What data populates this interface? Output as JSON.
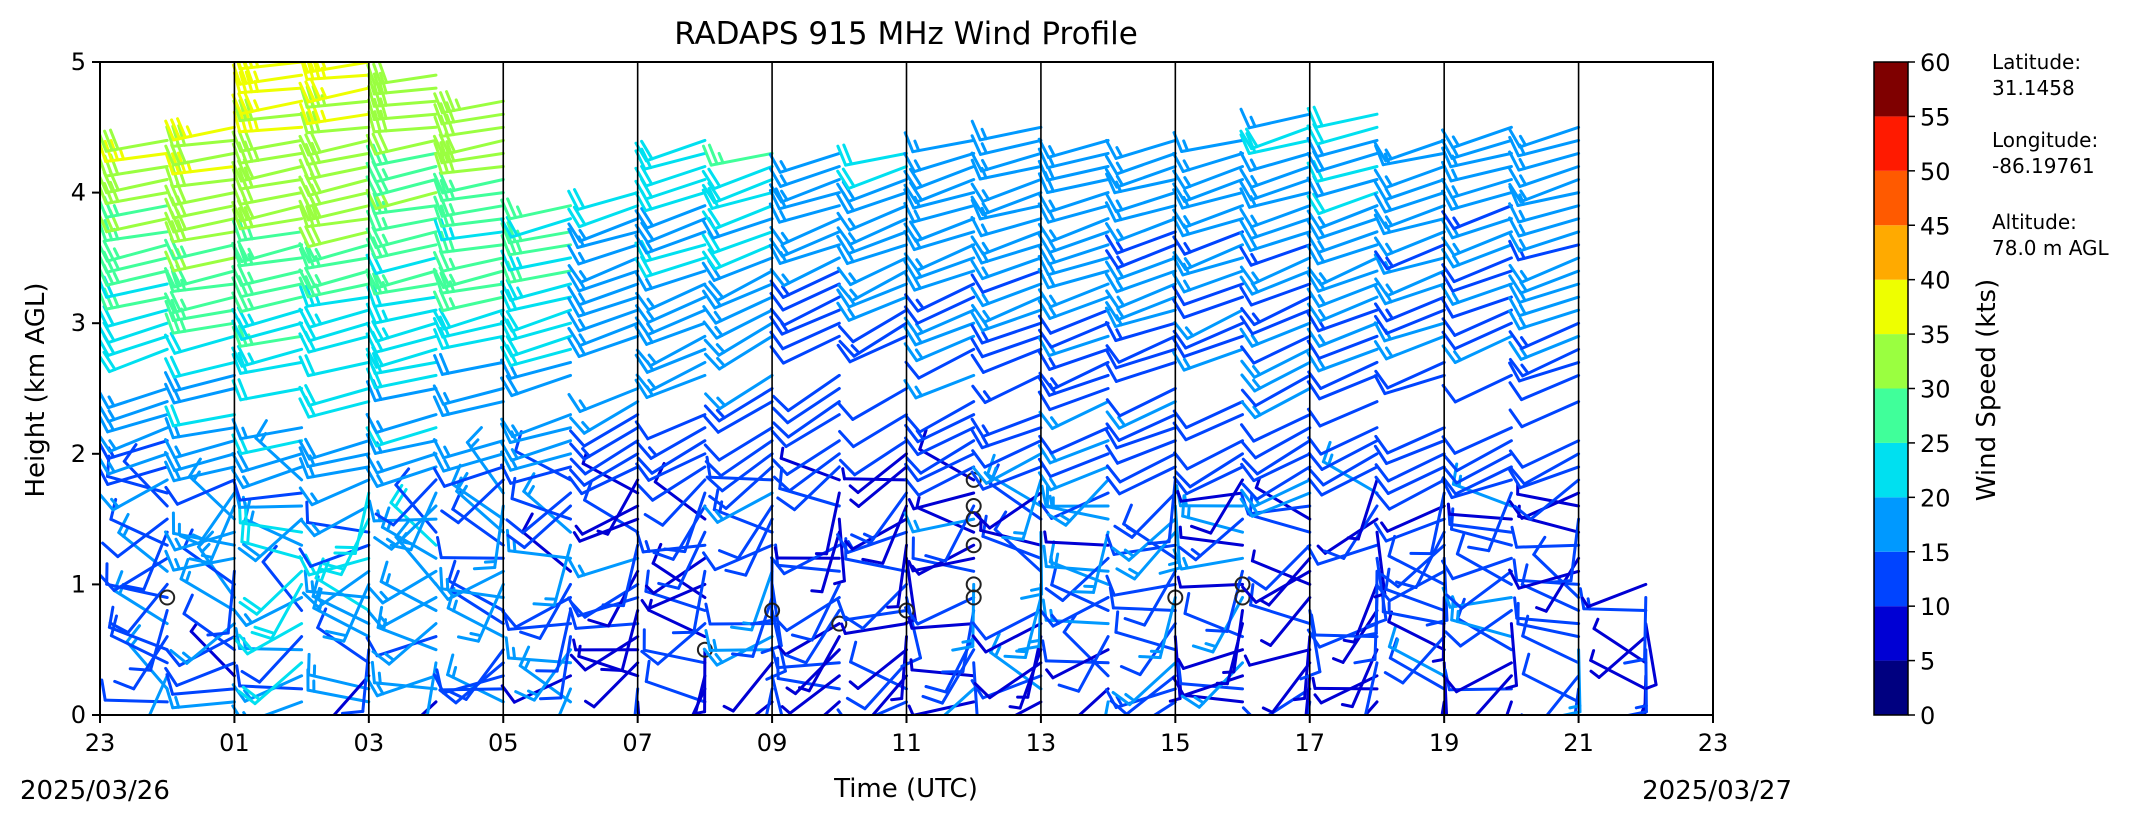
{
  "chart_data": {
    "type": "wind_barb_profile",
    "title": "RADAPS 915 MHz Wind Profile",
    "xlabel": "Time (UTC)",
    "ylabel": "Height (km AGL)",
    "x_ticks": [
      "23",
      "01",
      "03",
      "05",
      "07",
      "09",
      "11",
      "13",
      "15",
      "17",
      "19",
      "21",
      "23"
    ],
    "date_start": "2025/03/26",
    "date_end": "2025/03/27",
    "x_range_hours": [
      0,
      24
    ],
    "ylim": [
      0,
      5
    ],
    "y_ticks": [
      "0",
      "1",
      "2",
      "3",
      "4",
      "5"
    ],
    "barb_step_hours": 1,
    "gate_spacing_km": 0.1,
    "profiles": [
      {
        "hour": 1,
        "time": "00",
        "top_km": 4.4,
        "upper_speed_kts": 34,
        "lower_speed_kts": 14,
        "upper_dir_deg": 260,
        "lower_dir_deg": 250,
        "circles_km": [
          0.9
        ]
      },
      {
        "hour": 2,
        "time": "01",
        "top_km": 4.5,
        "upper_speed_kts": 37,
        "lower_speed_kts": 15,
        "upper_dir_deg": 262,
        "lower_dir_deg": 255,
        "circles_km": []
      },
      {
        "hour": 3,
        "time": "02",
        "top_km": 5.0,
        "upper_speed_kts": 38,
        "lower_speed_kts": 17,
        "upper_dir_deg": 262,
        "lower_dir_deg": 255,
        "circles_km": []
      },
      {
        "hour": 4,
        "time": "03",
        "top_km": 5.0,
        "upper_speed_kts": 38,
        "lower_speed_kts": 17,
        "upper_dir_deg": 262,
        "lower_dir_deg": 255,
        "circles_km": []
      },
      {
        "hour": 5,
        "time": "04",
        "top_km": 4.9,
        "upper_speed_kts": 34,
        "lower_speed_kts": 16,
        "upper_dir_deg": 262,
        "lower_dir_deg": 255,
        "circles_km": []
      },
      {
        "hour": 6,
        "time": "05",
        "top_km": 4.7,
        "upper_speed_kts": 33,
        "lower_speed_kts": 15,
        "upper_dir_deg": 260,
        "lower_dir_deg": 255,
        "circles_km": []
      },
      {
        "hour": 7,
        "time": "06",
        "top_km": 3.9,
        "upper_speed_kts": 27,
        "lower_speed_kts": 14,
        "upper_dir_deg": 258,
        "lower_dir_deg": 250,
        "circles_km": []
      },
      {
        "hour": 8,
        "time": "07",
        "top_km": 4.0,
        "upper_speed_kts": 22,
        "lower_speed_kts": 12,
        "upper_dir_deg": 255,
        "lower_dir_deg": 240,
        "circles_km": []
      },
      {
        "hour": 9,
        "time": "08",
        "top_km": 4.4,
        "upper_speed_kts": 24,
        "lower_speed_kts": 11,
        "upper_dir_deg": 255,
        "lower_dir_deg": 240,
        "circles_km": [
          0.5
        ]
      },
      {
        "hour": 10,
        "time": "09",
        "top_km": 4.3,
        "upper_speed_kts": 24,
        "lower_speed_kts": 11,
        "upper_dir_deg": 255,
        "lower_dir_deg": 230,
        "circles_km": [
          0.8
        ]
      },
      {
        "hour": 11,
        "time": "10",
        "top_km": 4.3,
        "upper_speed_kts": 20,
        "lower_speed_kts": 10,
        "upper_dir_deg": 255,
        "lower_dir_deg": 230,
        "circles_km": [
          0.7
        ]
      },
      {
        "hour": 12,
        "time": "11",
        "top_km": 4.3,
        "upper_speed_kts": 20,
        "lower_speed_kts": 10,
        "upper_dir_deg": 255,
        "lower_dir_deg": 230,
        "circles_km": [
          0.8
        ]
      },
      {
        "hour": 13,
        "time": "12",
        "top_km": 4.4,
        "upper_speed_kts": 20,
        "lower_speed_kts": 12,
        "upper_dir_deg": 255,
        "lower_dir_deg": 240,
        "circles_km": [
          0.9,
          1.0,
          1.3,
          1.5,
          1.6,
          1.8
        ]
      },
      {
        "hour": 14,
        "time": "13",
        "top_km": 4.5,
        "upper_speed_kts": 18,
        "lower_speed_kts": 13,
        "upper_dir_deg": 255,
        "lower_dir_deg": 245,
        "circles_km": []
      },
      {
        "hour": 15,
        "time": "14",
        "top_km": 4.4,
        "upper_speed_kts": 18,
        "lower_speed_kts": 14,
        "upper_dir_deg": 255,
        "lower_dir_deg": 245,
        "circles_km": []
      },
      {
        "hour": 16,
        "time": "15",
        "top_km": 4.4,
        "upper_speed_kts": 18,
        "lower_speed_kts": 13,
        "upper_dir_deg": 255,
        "lower_dir_deg": 245,
        "circles_km": [
          0.9
        ]
      },
      {
        "hour": 17,
        "time": "16",
        "top_km": 4.4,
        "upper_speed_kts": 18,
        "lower_speed_kts": 12,
        "upper_dir_deg": 255,
        "lower_dir_deg": 240,
        "circles_km": [
          0.9,
          1.0
        ]
      },
      {
        "hour": 18,
        "time": "17",
        "top_km": 4.6,
        "upper_speed_kts": 20,
        "lower_speed_kts": 11,
        "upper_dir_deg": 255,
        "lower_dir_deg": 240,
        "circles_km": []
      },
      {
        "hour": 19,
        "time": "18",
        "top_km": 4.6,
        "upper_speed_kts": 21,
        "lower_speed_kts": 11,
        "upper_dir_deg": 255,
        "lower_dir_deg": 240,
        "circles_km": []
      },
      {
        "hour": 20,
        "time": "19",
        "top_km": 4.4,
        "upper_speed_kts": 18,
        "lower_speed_kts": 12,
        "upper_dir_deg": 255,
        "lower_dir_deg": 245,
        "circles_km": []
      },
      {
        "hour": 21,
        "time": "20",
        "top_km": 4.5,
        "upper_speed_kts": 17,
        "lower_speed_kts": 12,
        "upper_dir_deg": 255,
        "lower_dir_deg": 245,
        "circles_km": []
      },
      {
        "hour": 22,
        "time": "21",
        "top_km": 4.5,
        "upper_speed_kts": 18,
        "lower_speed_kts": 12,
        "upper_dir_deg": 255,
        "lower_dir_deg": 245,
        "circles_km": []
      },
      {
        "hour": 23,
        "time": "22",
        "top_km": 1.0,
        "upper_speed_kts": 12,
        "lower_speed_kts": 10,
        "upper_dir_deg": 250,
        "lower_dir_deg": 240,
        "circles_km": []
      }
    ],
    "colorbar": {
      "label": "Wind Speed (kts)",
      "range": [
        0,
        60
      ],
      "ticks": [
        "0",
        "5",
        "10",
        "15",
        "20",
        "25",
        "30",
        "35",
        "40",
        "45",
        "50",
        "55",
        "60"
      ],
      "bins": [
        {
          "from": 0,
          "to": 5,
          "color": "#000080"
        },
        {
          "from": 5,
          "to": 10,
          "color": "#0000d4"
        },
        {
          "from": 10,
          "to": 15,
          "color": "#0044ff"
        },
        {
          "from": 15,
          "to": 20,
          "color": "#0099ff"
        },
        {
          "from": 20,
          "to": 25,
          "color": "#00e0f0"
        },
        {
          "from": 25,
          "to": 30,
          "color": "#40ff9a"
        },
        {
          "from": 30,
          "to": 35,
          "color": "#9aff40"
        },
        {
          "from": 35,
          "to": 40,
          "color": "#eeff00"
        },
        {
          "from": 40,
          "to": 45,
          "color": "#ffaa00"
        },
        {
          "from": 45,
          "to": 50,
          "color": "#ff5a00"
        },
        {
          "from": 50,
          "to": 55,
          "color": "#ff1a00"
        },
        {
          "from": 55,
          "to": 60,
          "color": "#7f0000"
        }
      ]
    }
  },
  "station": {
    "latitude_label": "Latitude:",
    "latitude_value": "31.1458",
    "longitude_label": "Longitude:",
    "longitude_value": "-86.19761",
    "altitude_label": "Altitude:",
    "altitude_value": "78.0 m AGL"
  }
}
